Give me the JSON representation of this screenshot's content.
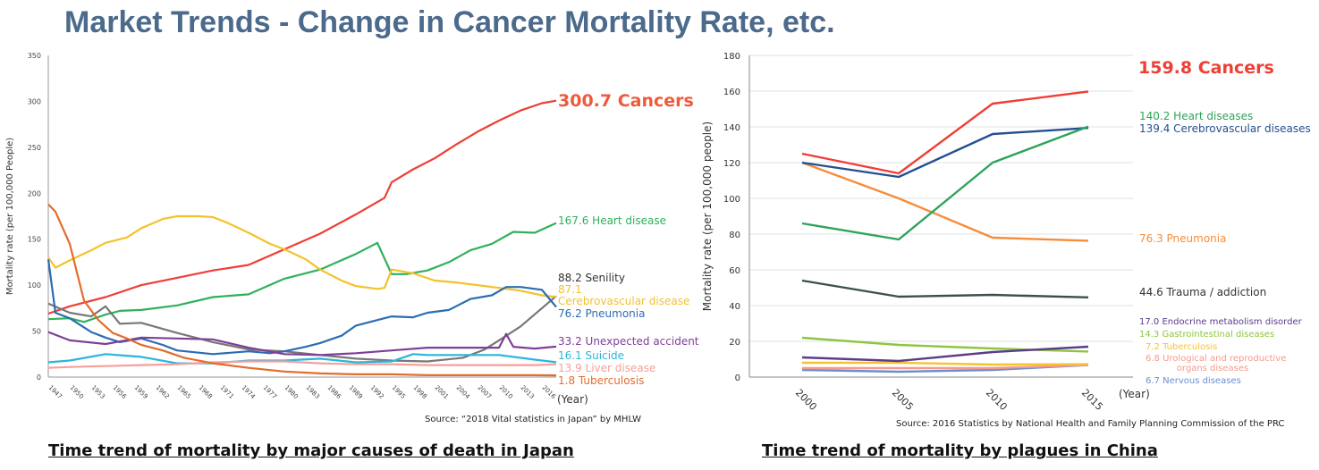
{
  "title": "Market Trends - Change in Cancer Mortality Rate, etc.",
  "chart_data": [
    {
      "type": "line",
      "caption": "Time trend of mortality by major causes of death in Japan",
      "source": "Source: “2018 Vital statistics in Japan” by MHLW",
      "ylabel": "Mortality rate (per 100,000 People)",
      "xlabel": "(Year)",
      "ylim": [
        0,
        350
      ],
      "yticks": [
        0,
        50,
        100,
        150,
        200,
        250,
        300,
        350
      ],
      "xlim": [
        1947,
        2018
      ],
      "xticks": [
        "1947",
        "1950",
        "1953",
        "1956",
        "1959",
        "1962",
        "1965",
        "1968",
        "1971",
        "1974",
        "1977",
        "1980",
        "1983",
        "1986",
        "1989",
        "1992",
        "1995",
        "1998",
        "2001",
        "2004",
        "2007",
        "2010",
        "2013",
        "2016"
      ],
      "grid": false,
      "series": [
        {
          "name": "Cancers",
          "end_label": "300.7 Cancers",
          "color": "#ef3e36",
          "x": [
            1947,
            1950,
            1955,
            1960,
            1965,
            1970,
            1975,
            1980,
            1985,
            1990,
            1994,
            1995,
            1998,
            2001,
            2004,
            2007,
            2010,
            2013,
            2016,
            2018
          ],
          "y": [
            69,
            77,
            87,
            100,
            108,
            116,
            122,
            139,
            156,
            177,
            195,
            212,
            226,
            238,
            253,
            267,
            279,
            290,
            298,
            300.7
          ]
        },
        {
          "name": "Heart disease",
          "end_label": "167.6 Heart disease",
          "color": "#2fb15a",
          "x": [
            1947,
            1950,
            1952,
            1955,
            1957,
            1960,
            1965,
            1970,
            1975,
            1980,
            1985,
            1990,
            1993,
            1995,
            1997,
            2000,
            2003,
            2006,
            2009,
            2012,
            2015,
            2018
          ],
          "y": [
            63,
            64,
            60,
            68,
            72,
            73,
            78,
            87,
            90,
            107,
            117,
            134,
            146,
            112,
            112,
            116,
            125,
            138,
            145,
            158,
            157,
            167.6
          ]
        },
        {
          "name": "Senility",
          "end_label": "88.2 Senility",
          "color": "#777777",
          "x": [
            1947,
            1950,
            1953,
            1955,
            1957,
            1960,
            1965,
            1970,
            1975,
            1980,
            1985,
            1990,
            1995,
            2000,
            2005,
            2008,
            2010,
            2013,
            2016,
            2018
          ],
          "y": [
            80,
            70,
            66,
            77,
            58,
            59,
            48,
            38,
            30,
            28,
            24,
            20,
            18,
            17,
            21,
            30,
            40,
            55,
            75,
            88.2
          ]
        },
        {
          "name": "Cerebrovascular disease",
          "end_label": "87.1\nCerebrovascular disease",
          "color": "#f4c22b",
          "x": [
            1947,
            1948,
            1950,
            1953,
            1955,
            1958,
            1960,
            1963,
            1965,
            1968,
            1970,
            1972,
            1975,
            1978,
            1980,
            1983,
            1985,
            1988,
            1990,
            1993,
            1994,
            1995,
            1998,
            2001,
            2004,
            2007,
            2010,
            2013,
            2016,
            2018
          ],
          "y": [
            130,
            119,
            127,
            138,
            146,
            152,
            162,
            172,
            175,
            175,
            174,
            168,
            157,
            145,
            139,
            128,
            117,
            105,
            99,
            96,
            97,
            117,
            113,
            105,
            103,
            100,
            97,
            94,
            89,
            87.1
          ]
        },
        {
          "name": "Pneumonia",
          "end_label": "76.2 Pneumonia",
          "color": "#2b6cb3",
          "x": [
            1947,
            1948,
            1950,
            1953,
            1955,
            1957,
            1960,
            1963,
            1965,
            1970,
            1975,
            1978,
            1980,
            1983,
            1985,
            1988,
            1990,
            1993,
            1995,
            1998,
            2000,
            2003,
            2006,
            2009,
            2011,
            2013,
            2016,
            2018
          ],
          "y": [
            128,
            70,
            64,
            49,
            43,
            38,
            42,
            35,
            29,
            25,
            28,
            26,
            28,
            33,
            37,
            45,
            56,
            62,
            66,
            65,
            70,
            73,
            85,
            89,
            98,
            98,
            95,
            76.2
          ]
        },
        {
          "name": "Unexpected accident",
          "end_label": "33.2 Unexpected accident",
          "color": "#7f3f98",
          "x": [
            1947,
            1950,
            1955,
            1960,
            1965,
            1970,
            1975,
            1980,
            1985,
            1990,
            1995,
            2000,
            2005,
            2010,
            2011,
            2012,
            2015,
            2018
          ],
          "y": [
            49,
            40,
            36,
            43,
            42,
            41,
            32,
            25,
            24,
            26,
            29,
            32,
            32,
            32,
            47,
            33,
            31,
            33.2
          ]
        },
        {
          "name": "Suicide",
          "end_label": "16.1 Suicide",
          "color": "#29b6d9",
          "x": [
            1947,
            1950,
            1955,
            1960,
            1965,
            1970,
            1975,
            1980,
            1985,
            1990,
            1995,
            1998,
            2000,
            2005,
            2010,
            2015,
            2018
          ],
          "y": [
            16,
            18,
            25,
            22,
            15,
            15,
            18,
            18,
            20,
            16,
            17,
            25,
            24,
            24,
            24,
            19,
            16.1
          ]
        },
        {
          "name": "Liver disease",
          "end_label": "13.9 Liver disease",
          "color": "#f5a09a",
          "x": [
            1947,
            1950,
            1955,
            1960,
            1965,
            1970,
            1975,
            1980,
            1985,
            1990,
            1995,
            2000,
            2005,
            2010,
            2015,
            2018
          ],
          "y": [
            10,
            11,
            12,
            13,
            14,
            16,
            17,
            17,
            15,
            14,
            14,
            13,
            13,
            13,
            13,
            13.9
          ]
        },
        {
          "name": "Tuberculosis",
          "end_label": "1.8 Tuberculosis",
          "color": "#e46c2c",
          "x": [
            1947,
            1948,
            1950,
            1952,
            1954,
            1956,
            1958,
            1960,
            1963,
            1966,
            1970,
            1975,
            1980,
            1985,
            1990,
            1995,
            2000,
            2005,
            2010,
            2015,
            2018
          ],
          "y": [
            188,
            180,
            145,
            83,
            62,
            48,
            42,
            35,
            29,
            21,
            15,
            10,
            6,
            4,
            3,
            3,
            2,
            2,
            2,
            2,
            1.8
          ]
        }
      ]
    },
    {
      "type": "line",
      "caption": "Time trend of mortality by plagues in China",
      "source": "Source: 2016 Statistics by National Health and Family Planning Commission of the PRC",
      "ylabel": "Mortality rate (per 100,000 people)",
      "xlabel": "(Year)",
      "ylim": [
        0,
        180
      ],
      "yticks": [
        0,
        20,
        40,
        60,
        80,
        100,
        120,
        140,
        160,
        180
      ],
      "categories": [
        "2000",
        "2005",
        "2010",
        "2015"
      ],
      "grid": true,
      "series": [
        {
          "name": "Cancers",
          "end_label": "159.8 Cancers",
          "color": "#ef3e36",
          "values": [
            125,
            114,
            153,
            159.8
          ]
        },
        {
          "name": "Heart diseases",
          "end_label": "140.2 Heart diseases",
          "color": "#2ea35a",
          "values": [
            86,
            77,
            120,
            140.2
          ]
        },
        {
          "name": "Cerebrovascular diseases",
          "end_label": "139.4 Cerebrovascular diseases",
          "color": "#234f91",
          "values": [
            120,
            112,
            136,
            139.4
          ]
        },
        {
          "name": "Pneumonia",
          "end_label": "76.3 Pneumonia",
          "color": "#f58d3b",
          "values": [
            120,
            100,
            78,
            76.3
          ]
        },
        {
          "name": "Trauma / addiction",
          "end_label": "44.6 Trauma / addiction",
          "color": "#3a5050",
          "values": [
            54,
            45,
            46,
            44.6
          ]
        },
        {
          "name": "Endocrine metabolism disorder",
          "end_label": "17.0 Endocrine metabolism disorder",
          "color": "#5b3c8c",
          "values": [
            11,
            9,
            14,
            17.0
          ]
        },
        {
          "name": "Gastrointestinal diseases",
          "end_label": "14.3 Gastrointestinal diseases",
          "color": "#8cc63e",
          "values": [
            22,
            18,
            16,
            14.3
          ]
        },
        {
          "name": "Tuberculosis",
          "end_label": "7.2 Tuberculosis",
          "color": "#f6c330",
          "values": [
            8,
            8,
            7,
            7.2
          ]
        },
        {
          "name": "Urological and reproductive organs diseases",
          "end_label": "6.8 Urological and reproductive\norgans diseases",
          "color": "#f59a8c",
          "values": [
            5,
            5,
            5,
            6.8
          ]
        },
        {
          "name": "Nervous diseases",
          "end_label": "6.7 Nervous diseases",
          "color": "#6a8fd0",
          "values": [
            4,
            3,
            4,
            6.7
          ]
        }
      ]
    }
  ]
}
